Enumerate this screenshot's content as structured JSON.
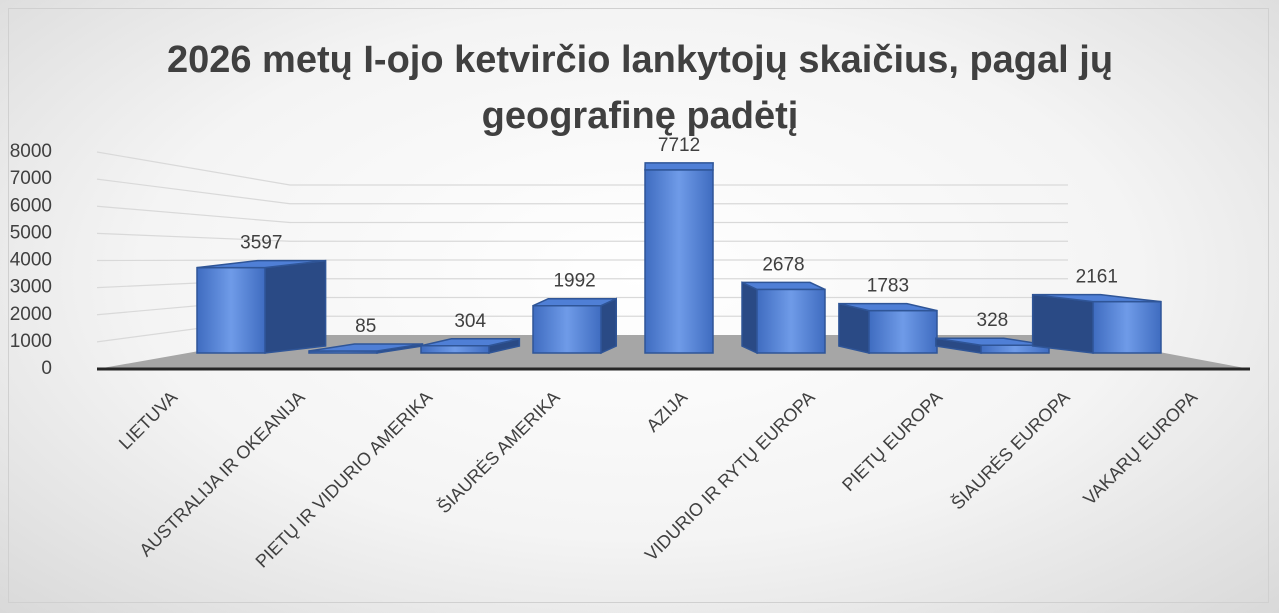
{
  "chart_data": {
    "type": "bar3d",
    "title": "2026 metų I-ojo ketvirčio lankytojų skaičius, pagal jų geografinę padėtį",
    "categories": [
      "LIETUVA",
      "AUSTRALIJA IR OKEANIJA",
      "PIETŲ IR VIDURIO AMERIKA",
      "ŠIAURĖS AMERIKA",
      "AZIJA",
      "VIDURIO IR RYTŲ EUROPA",
      "PIETŲ EUROPA",
      "ŠIAURĖS EUROPA",
      "VAKARŲ EUROPA"
    ],
    "values": [
      3597,
      85,
      304,
      1992,
      7712,
      2678,
      1783,
      328,
      2161
    ],
    "color": "#4472c4",
    "ylim": [
      0,
      8000
    ],
    "yticks": [
      0,
      1000,
      2000,
      3000,
      4000,
      5000,
      6000,
      7000,
      8000
    ],
    "grid": true
  }
}
